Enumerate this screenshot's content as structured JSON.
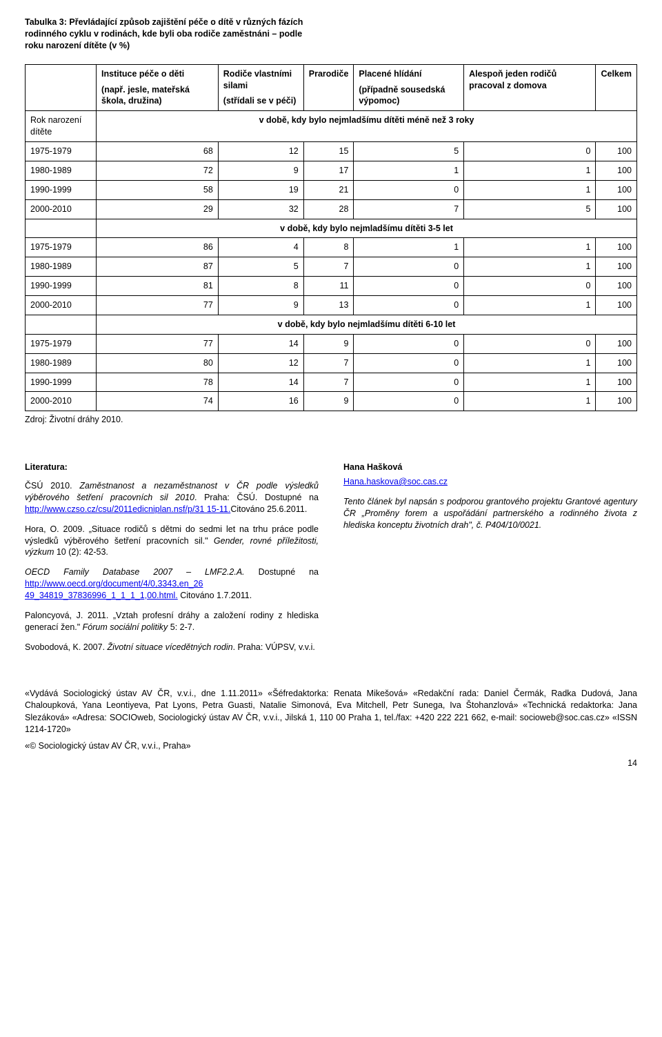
{
  "title": "Tabulka 3: Převládající způsob zajištění péče o dítě v různých fázích rodinného cyklu v rodinách, kde byli oba rodiče zaměstnáni – podle roku narození dítěte (v %)",
  "table": {
    "headers": [
      "",
      "Instituce péče o děti\n(např. jesle, mateřská škola, družina)",
      "Rodiče vlastními silami\n(střídali se v péči)",
      "Prarodiče",
      "Placené hlídání\n(případně sousedská výpomoc)",
      "Alespoň jeden rodičů pracoval z domova",
      "Celkem"
    ],
    "sections": [
      {
        "label_left": "Rok narození dítěte",
        "label_span": "v době, kdy bylo nejmladšímu dítěti méně než 3 roky",
        "rows": [
          [
            "1975-1979",
            68,
            12,
            15,
            5,
            0,
            100
          ],
          [
            "1980-1989",
            72,
            9,
            17,
            1,
            1,
            100
          ],
          [
            "1990-1999",
            58,
            19,
            21,
            0,
            1,
            100
          ],
          [
            "2000-2010",
            29,
            32,
            28,
            7,
            5,
            100
          ]
        ]
      },
      {
        "label_span": "v době, kdy bylo nejmladšímu dítěti 3-5 let",
        "rows": [
          [
            "1975-1979",
            86,
            4,
            8,
            1,
            1,
            100
          ],
          [
            "1980-1989",
            87,
            5,
            7,
            0,
            1,
            100
          ],
          [
            "1990-1999",
            81,
            8,
            11,
            0,
            0,
            100
          ],
          [
            "2000-2010",
            77,
            9,
            13,
            0,
            1,
            100
          ]
        ]
      },
      {
        "label_span": "v době, kdy bylo nejmladšímu dítěti 6-10 let",
        "rows": [
          [
            "1975-1979",
            77,
            14,
            9,
            0,
            0,
            100
          ],
          [
            "1980-1989",
            80,
            12,
            7,
            0,
            1,
            100
          ],
          [
            "1990-1999",
            78,
            14,
            7,
            0,
            1,
            100
          ],
          [
            "2000-2010",
            74,
            16,
            9,
            0,
            1,
            100
          ]
        ]
      }
    ]
  },
  "zdroj": "Zdroj: Životní dráhy 2010.",
  "literature": {
    "heading": "Literatura:",
    "p1_a": "ČSÚ 2010. ",
    "p1_em": "Zaměstnanost a nezaměstnanost v ČR podle výsledků výběrového šetření pracovních sil 2010",
    "p1_b": ". Praha: ČSÚ. Dostupné na ",
    "p1_link1": "http://www.czso.cz/csu/2011edicniplan.nsf/p/31 15-11.",
    "p1_c": "Citováno 25.6.2011.",
    "p2_a": "Hora, O. 2009. „Situace rodičů s dětmi do sedmi let na trhu práce podle výsledků výběrového šetření pracovních sil.\" ",
    "p2_em": "Gender, rovné příležitosti, výzkum",
    "p2_b": " 10 (2): 42-53.",
    "p3_em": "OECD Family Database 2007 – LMF2.2.A.",
    "p3_a": " Dostupné na ",
    "p3_link": "http://www.oecd.org/document/4/0,3343,en_26 49_34819_37836996_1_1_1_1,00.html.",
    "p3_b": " Citováno 1.7.2011.",
    "p4_a": "Paloncyová, J. 2011. „Vztah profesní dráhy a založení rodiny z hlediska generací žen.\" ",
    "p4_em": "Fórum sociální politiky",
    "p4_b": " 5: 2-7.",
    "p5_a": "Svobodová, K. 2007. ",
    "p5_em": "Životní situace vícedětných rodin",
    "p5_b": ". Praha: VÚPSV, v.v.i."
  },
  "right": {
    "author": "Hana Hašková",
    "email": "Hana.haskova@soc.cas.cz",
    "note_a": "Tento článek byl napsán s podporou grantového projektu Grantové agentury ČR „Proměny forem a uspořádání partnerského a rodinného života z hlediska konceptu životních drah\", č. P404/10/0021."
  },
  "footer": {
    "line1": "«Vydává Sociologický ústav AV ČR, v.v.i., dne 1.11.2011» «Šéfredaktorka: Renata Mikešová» «Redakční rada: Daniel Čermák, Radka Dudová, Jana Chaloupková, Yana Leontiyeva, Pat Lyons, Petra Guasti, Natalie Simonová, Eva Mitchell, Petr Sunega, Iva Štohanzlová» «Technická redaktorka: Jana Slezáková» «Adresa: SOCIOweb, Sociologický ústav AV ČR, v.v.i., Jilská 1, 110 00 Praha 1, tel./fax: +420 222 221 662, e-mail: socioweb@soc.cas.cz» «ISSN 1214-1720»",
    "line2": "«© Sociologický ústav AV ČR, v.v.i., Praha»"
  },
  "pagenum": "14"
}
